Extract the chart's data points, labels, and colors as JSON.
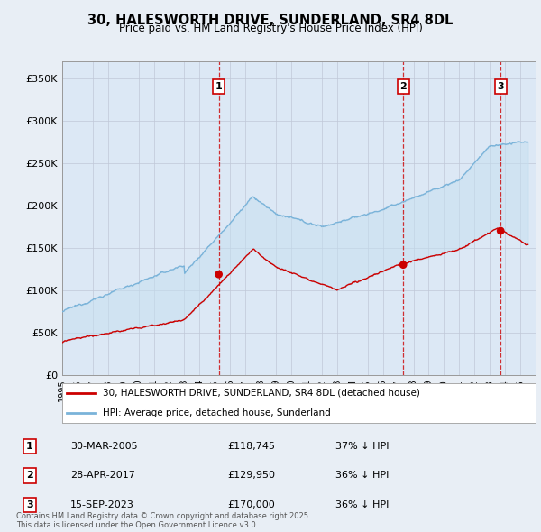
{
  "title": "30, HALESWORTH DRIVE, SUNDERLAND, SR4 8DL",
  "subtitle": "Price paid vs. HM Land Registry's House Price Index (HPI)",
  "background_color": "#e8eef5",
  "plot_bg_color": "#dce8f5",
  "hpi_color": "#7ab3d9",
  "price_color": "#cc0000",
  "dashed_line_color": "#cc0000",
  "ylabel_ticks": [
    "£0",
    "£50K",
    "£100K",
    "£150K",
    "£200K",
    "£250K",
    "£300K",
    "£350K"
  ],
  "ytick_values": [
    0,
    50000,
    100000,
    150000,
    200000,
    250000,
    300000,
    350000
  ],
  "ylim": [
    0,
    370000
  ],
  "xlim_start": 1995.0,
  "xlim_end": 2026.0,
  "transactions": [
    {
      "label": "1",
      "date": "30-MAR-2005",
      "price": 118745,
      "pct": "37%",
      "x": 2005.25
    },
    {
      "label": "2",
      "date": "28-APR-2017",
      "price": 129950,
      "pct": "36%",
      "x": 2017.33
    },
    {
      "label": "3",
      "date": "15-SEP-2023",
      "price": 170000,
      "pct": "36%",
      "x": 2023.71
    }
  ],
  "legend_entries": [
    {
      "label": "30, HALESWORTH DRIVE, SUNDERLAND, SR4 8DL (detached house)",
      "color": "#cc0000"
    },
    {
      "label": "HPI: Average price, detached house, Sunderland",
      "color": "#7ab3d9"
    }
  ],
  "footer": "Contains HM Land Registry data © Crown copyright and database right 2025.\nThis data is licensed under the Open Government Licence v3.0.",
  "table_rows": [
    [
      "1",
      "30-MAR-2005",
      "£118,745",
      "37% ↓ HPI"
    ],
    [
      "2",
      "28-APR-2017",
      "£129,950",
      "36% ↓ HPI"
    ],
    [
      "3",
      "15-SEP-2023",
      "£170,000",
      "36% ↓ HPI"
    ]
  ]
}
